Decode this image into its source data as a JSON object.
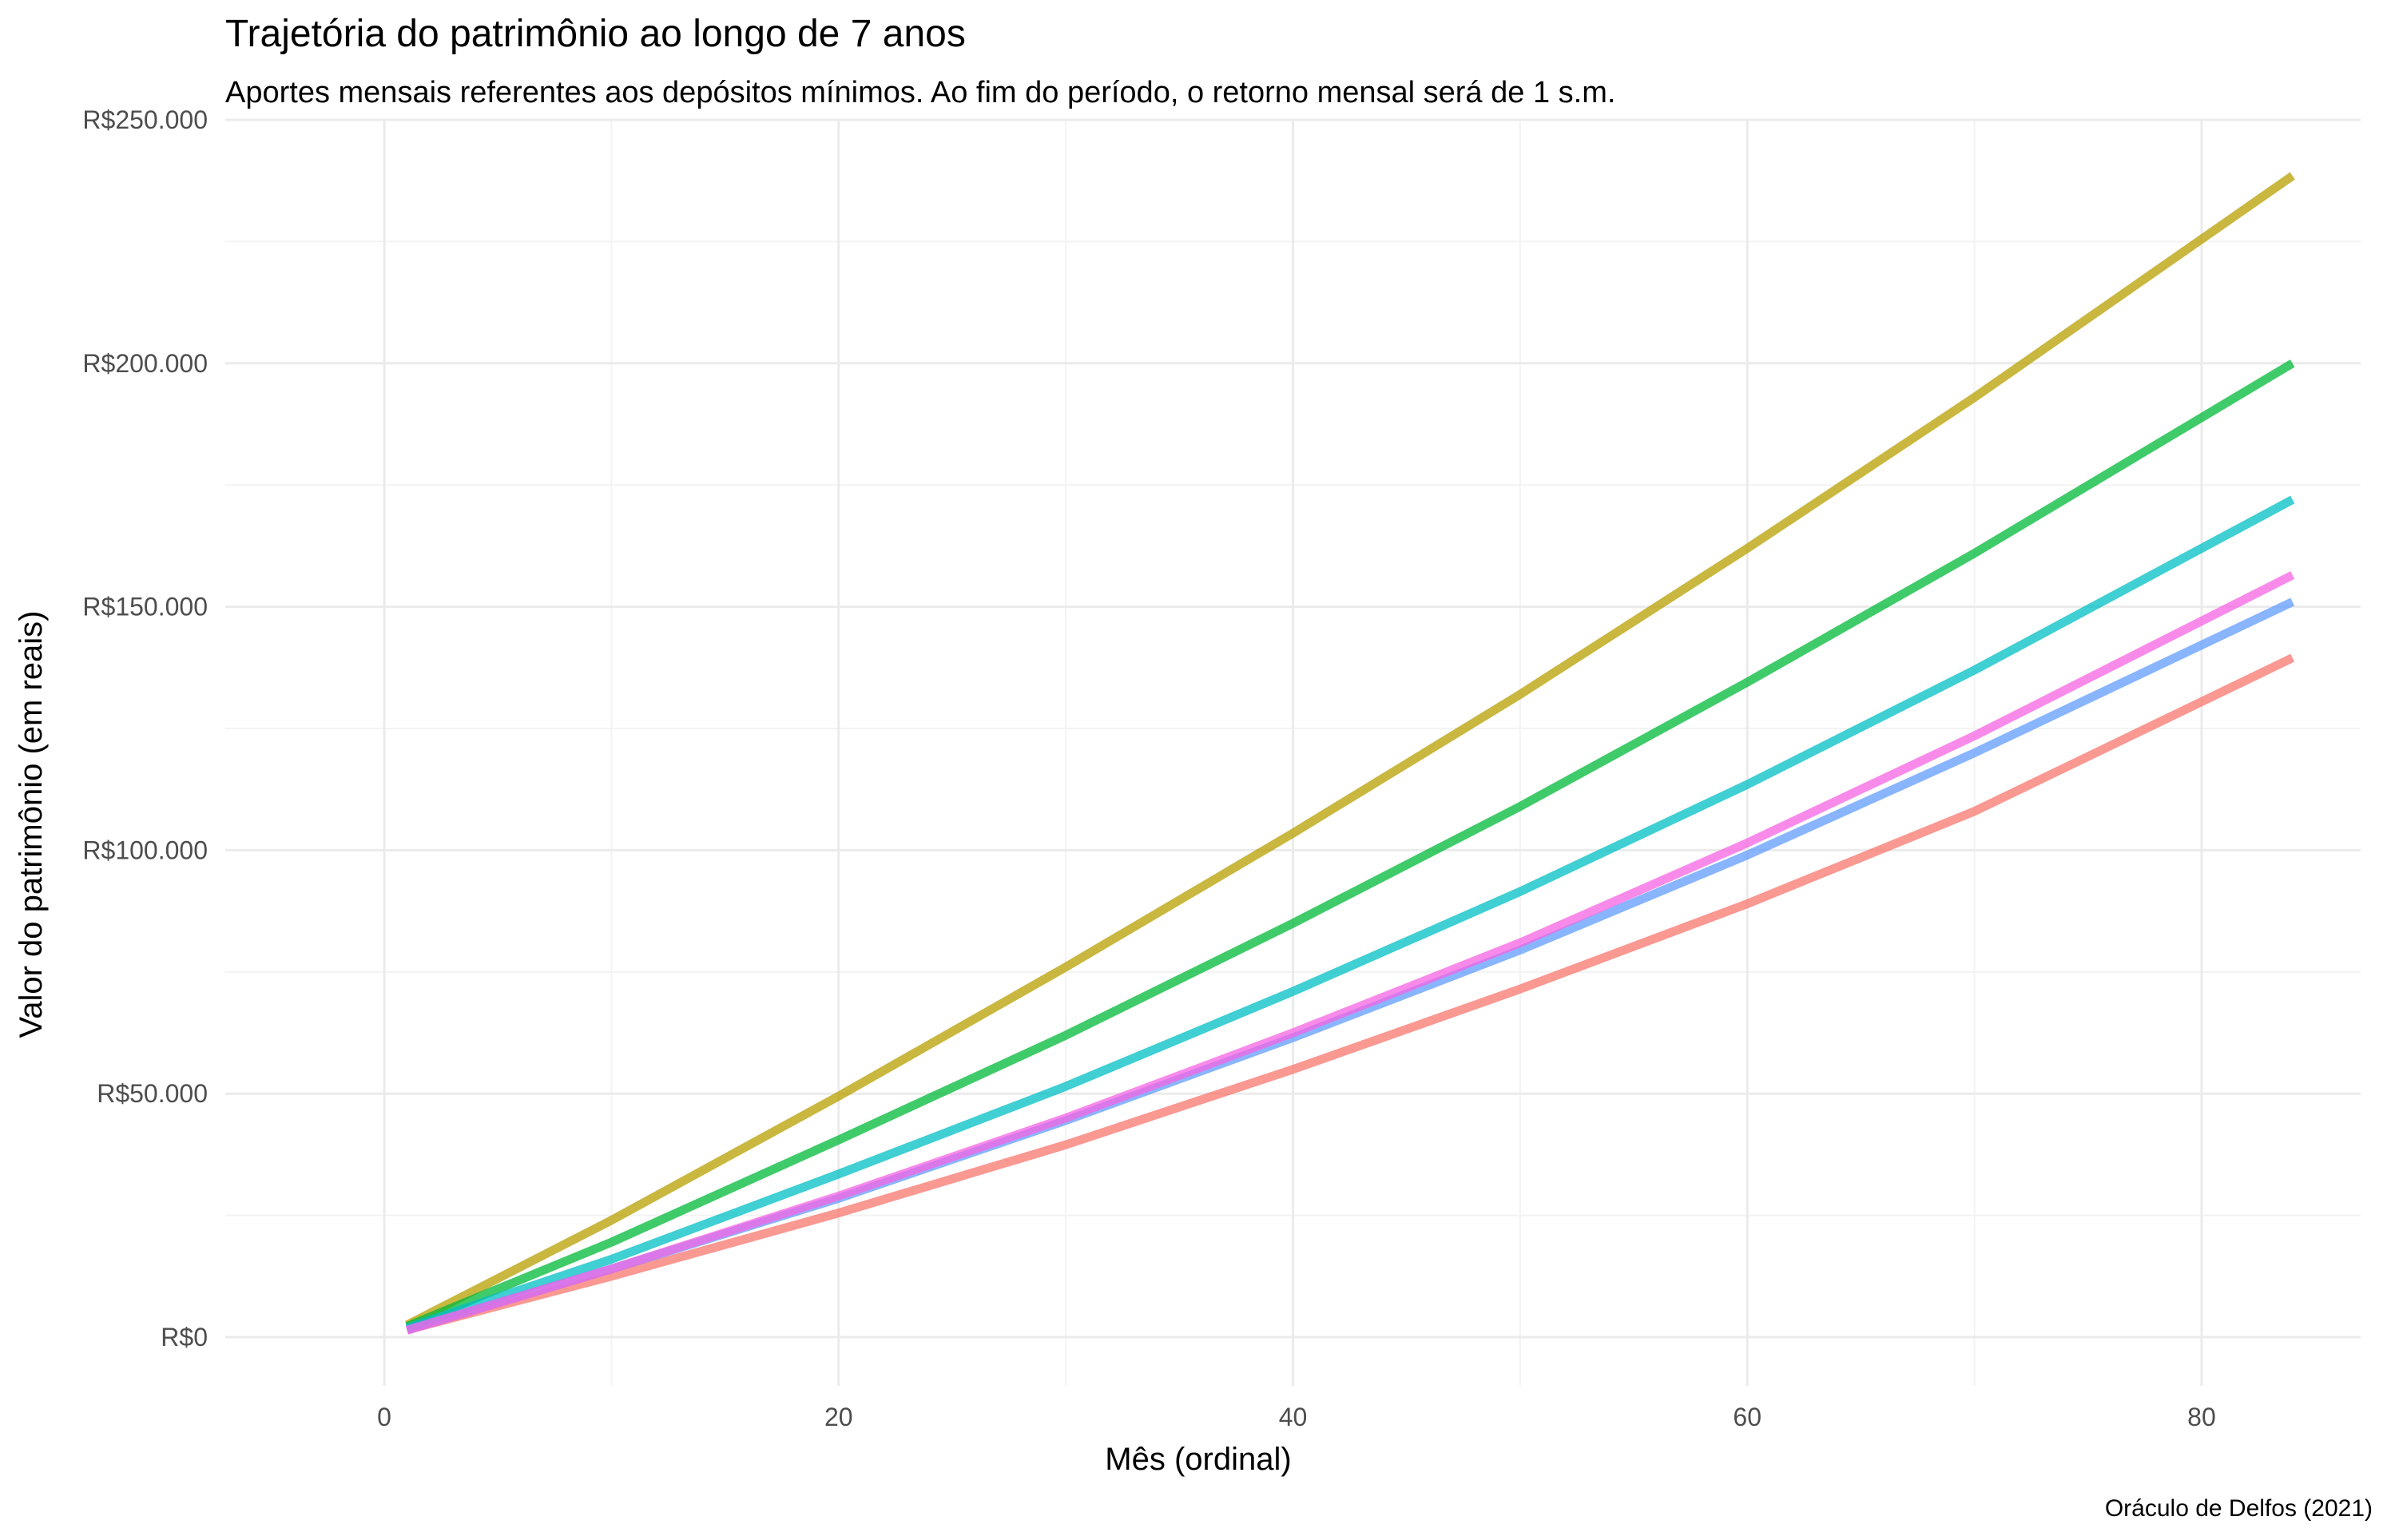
{
  "chart_data": {
    "type": "line",
    "title": "Trajetória do patrimônio ao longo de 7 anos",
    "subtitle": "Aportes mensais referentes aos depósitos mínimos. Ao fim do período, o retorno mensal será de 1 s.m.",
    "xlabel": "Mês (ordinal)",
    "ylabel": "Valor do patrimônio (em reais)",
    "caption": "Oráculo de Delfos (2021)",
    "xlim": [
      -7,
      87
    ],
    "ylim": [
      -10000,
      250000
    ],
    "x_ticks": [
      0,
      20,
      40,
      60,
      80
    ],
    "x_tick_labels": [
      "0",
      "20",
      "40",
      "60",
      "80"
    ],
    "y_ticks": [
      0,
      50000,
      100000,
      150000,
      200000,
      250000
    ],
    "y_tick_labels": [
      "R$0",
      "R$50.000",
      "R$100.000",
      "R$150.000",
      "R$200.000",
      "R$250.000"
    ],
    "grid": true,
    "legend": "none",
    "series": [
      {
        "name": "series-1",
        "color": "#F8766D",
        "x": [
          1,
          10,
          20,
          30,
          40,
          50,
          60,
          70,
          84
        ],
        "values": [
          1500,
          12500,
          25500,
          39500,
          55000,
          71500,
          89000,
          108000,
          139500
        ]
      },
      {
        "name": "series-2",
        "color": "#B79F00",
        "x": [
          1,
          10,
          20,
          30,
          40,
          50,
          60,
          70,
          84
        ],
        "values": [
          2500,
          24000,
          49500,
          76000,
          103500,
          132000,
          162000,
          193000,
          238500
        ]
      },
      {
        "name": "series-3",
        "color": "#00BA38",
        "x": [
          1,
          10,
          20,
          30,
          40,
          50,
          60,
          70,
          84
        ],
        "values": [
          2200,
          19500,
          40500,
          62000,
          85000,
          109000,
          134500,
          161000,
          200000
        ]
      },
      {
        "name": "series-4",
        "color": "#00BFC4",
        "x": [
          1,
          10,
          20,
          30,
          40,
          50,
          60,
          70,
          84
        ],
        "values": [
          1900,
          16000,
          33500,
          51500,
          71000,
          91500,
          113500,
          137000,
          172000
        ]
      },
      {
        "name": "series-5",
        "color": "#619CFF",
        "x": [
          1,
          10,
          20,
          30,
          40,
          50,
          60,
          70,
          84
        ],
        "values": [
          1500,
          14000,
          28500,
          44500,
          61500,
          79500,
          99000,
          120000,
          151000
        ]
      },
      {
        "name": "series-6",
        "color": "#F564E3",
        "x": [
          1,
          10,
          20,
          30,
          40,
          50,
          60,
          70,
          84
        ],
        "values": [
          1400,
          14000,
          29000,
          45000,
          62500,
          81000,
          101500,
          123500,
          156500
        ]
      }
    ]
  }
}
